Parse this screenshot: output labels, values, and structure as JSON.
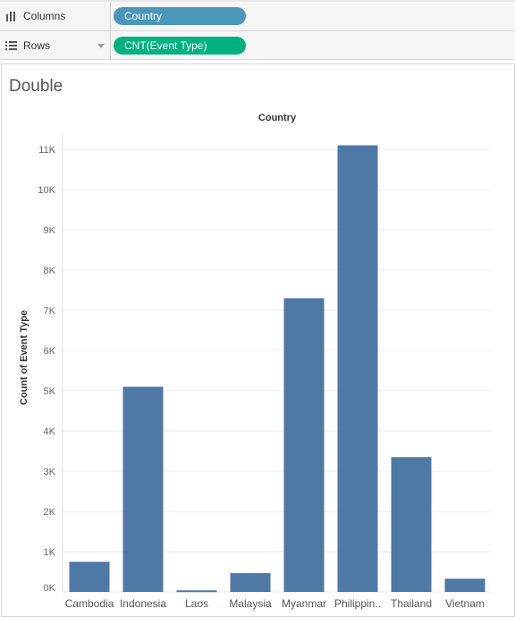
{
  "shelves": {
    "columns": {
      "label": "Columns",
      "pill": "Country",
      "pill_color": "#4a97ba"
    },
    "rows": {
      "label": "Rows",
      "pill": "CNT(Event Type)",
      "pill_color": "#00b180"
    }
  },
  "sheet": {
    "title": "Double"
  },
  "chart_data": {
    "type": "bar",
    "title": "Country",
    "xlabel": "",
    "ylabel": "Count of Event Type",
    "categories": [
      "Cambodia",
      "Indonesia",
      "Laos",
      "Malaysia",
      "Myanmar",
      "Philippin..",
      "Thailand",
      "Vietnam"
    ],
    "values": [
      750,
      5100,
      40,
      470,
      7300,
      11100,
      3350,
      330
    ],
    "ylim": [
      0,
      11500
    ],
    "yticks": [
      0,
      1000,
      2000,
      3000,
      4000,
      5000,
      6000,
      7000,
      8000,
      9000,
      10000,
      11000
    ],
    "ytick_labels": [
      "0K",
      "1K",
      "2K",
      "3K",
      "4K",
      "5K",
      "6K",
      "7K",
      "8K",
      "9K",
      "10K",
      "11K"
    ],
    "bar_color": "#4e79a7",
    "grid": true
  }
}
